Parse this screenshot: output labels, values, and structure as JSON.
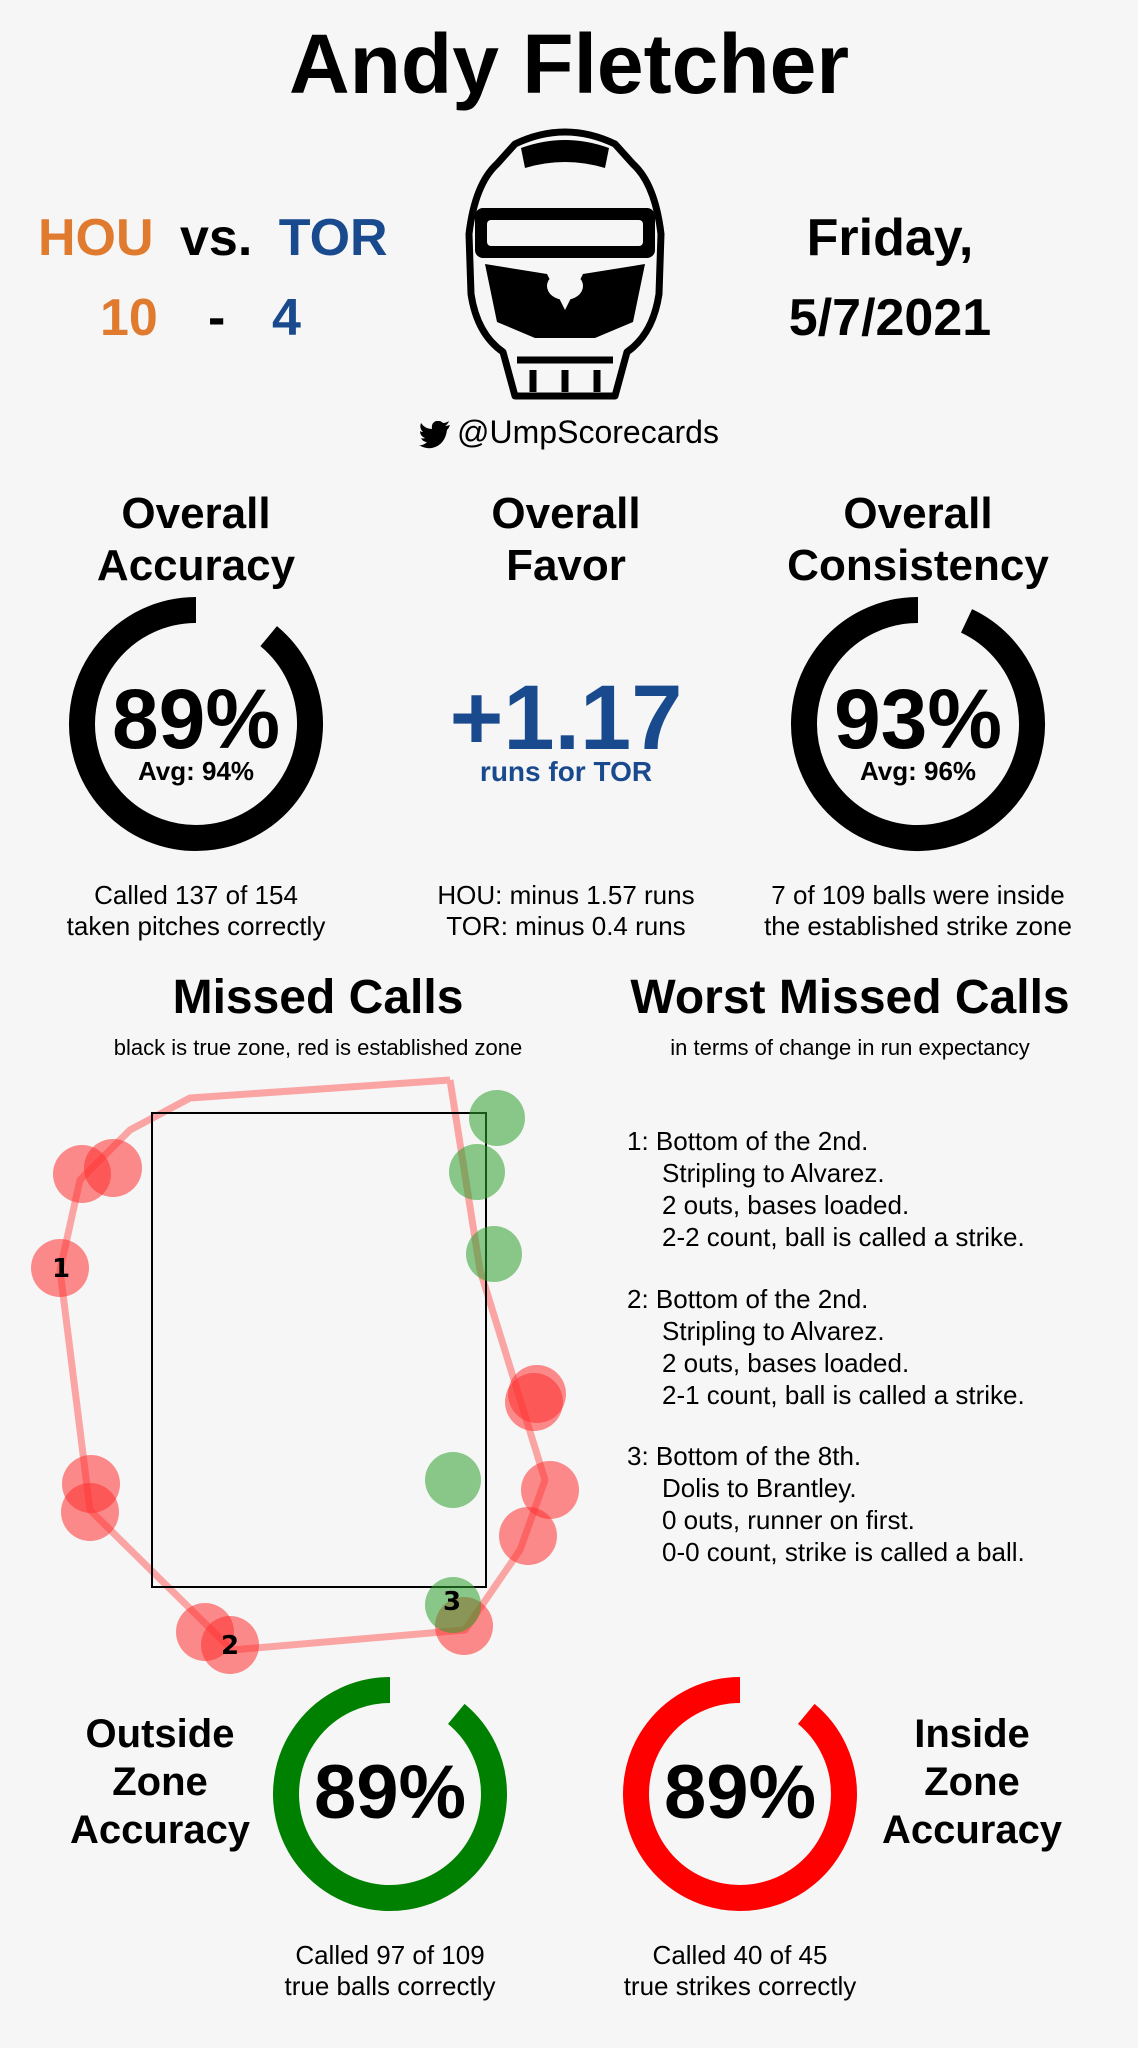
{
  "header": {
    "umpire_name": "Andy Fletcher",
    "team_home": "HOU",
    "vs_text": "vs.",
    "team_away": "TOR",
    "score_home": "10",
    "score_dash": "-",
    "score_away": "4",
    "date_day": "Friday,",
    "date_full": "5/7/2021",
    "twitter_handle": "@UmpScorecards"
  },
  "overall_accuracy": {
    "title_line1": "Overall",
    "title_line2": "Accuracy",
    "value": "89%",
    "fraction": 0.89,
    "avg": "Avg: 94%",
    "desc_line1": "Called 137 of 154",
    "desc_line2": "taken pitches correctly"
  },
  "overall_favor": {
    "title_line1": "Overall",
    "title_line2": "Favor",
    "value": "+1.17",
    "runs_for": "runs for TOR",
    "desc_line1": "HOU: minus 1.57 runs",
    "desc_line2": "TOR: minus 0.4 runs"
  },
  "overall_consistency": {
    "title_line1": "Overall",
    "title_line2": "Consistency",
    "value": "93%",
    "fraction": 0.93,
    "avg": "Avg: 96%",
    "desc_line1": "7 of 109 balls were inside",
    "desc_line2": "the established strike zone"
  },
  "missed_calls": {
    "title": "Missed Calls",
    "subtitle": "black is true zone, red is established zone",
    "labels": [
      "1",
      "2",
      "3"
    ]
  },
  "worst_missed_calls": {
    "title": "Worst Missed Calls",
    "subtitle": "in terms of change in run expectancy",
    "calls": [
      {
        "line1": "1: Bottom of the 2nd.",
        "line2": "Stripling to Alvarez.",
        "line3": "2 outs, bases loaded.",
        "line4": "2-2 count, ball is called a strike."
      },
      {
        "line1": "2: Bottom of the 2nd.",
        "line2": "Stripling to Alvarez.",
        "line3": "2 outs, bases loaded.",
        "line4": "2-1 count, ball is called a strike."
      },
      {
        "line1": "3: Bottom of the 8th.",
        "line2": "Dolis to Brantley.",
        "line3": "0 outs, runner on first.",
        "line4": "0-0 count, strike is called a ball."
      }
    ]
  },
  "outside_zone": {
    "label_line1": "Outside",
    "label_line2": "Zone",
    "label_line3": "Accuracy",
    "value": "89%",
    "fraction": 0.89,
    "color": "#008000",
    "desc_line1": "Called 97 of 109",
    "desc_line2": "true balls correctly"
  },
  "inside_zone": {
    "label_line1": "Inside",
    "label_line2": "Zone",
    "label_line3": "Accuracy",
    "value": "89%",
    "fraction": 0.89,
    "color": "#ff0000",
    "desc_line1": "Called 40 of 45",
    "desc_line2": "true strikes correctly"
  }
}
